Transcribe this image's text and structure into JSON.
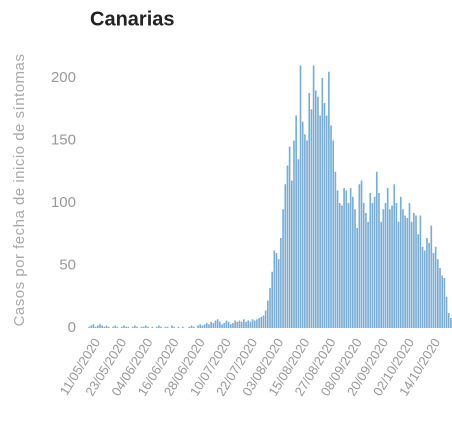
{
  "chart_data": {
    "type": "bar",
    "title": "Canarias",
    "y_label": "Casos por fecha de inicio de síntomas",
    "categories": [
      null,
      null,
      null,
      null,
      "11/05/2020",
      null,
      null,
      null,
      null,
      null,
      null,
      null,
      null,
      null,
      null,
      null,
      "23/05/2020",
      null,
      null,
      null,
      null,
      null,
      null,
      null,
      null,
      null,
      null,
      null,
      "04/06/2020",
      null,
      null,
      null,
      null,
      null,
      null,
      null,
      null,
      null,
      null,
      null,
      "16/06/2020",
      null,
      null,
      null,
      null,
      null,
      null,
      null,
      null,
      null,
      null,
      null,
      "28/06/2020",
      null,
      null,
      null,
      null,
      null,
      null,
      null,
      null,
      null,
      null,
      null,
      "10/07/2020",
      null,
      null,
      null,
      null,
      null,
      null,
      null,
      null,
      null,
      null,
      null,
      "22/07/2020",
      null,
      null,
      null,
      null,
      null,
      null,
      null,
      null,
      null,
      null,
      null,
      "03/08/2020",
      null,
      null,
      null,
      null,
      null,
      null,
      null,
      null,
      null,
      null,
      null,
      "15/08/2020",
      null,
      null,
      null,
      null,
      null,
      null,
      null,
      null,
      null,
      null,
      null,
      "27/08/2020",
      null,
      null,
      null,
      null,
      null,
      null,
      null,
      null,
      null,
      null,
      null,
      "08/09/2020",
      null,
      null,
      null,
      null,
      null,
      null,
      null,
      null,
      null,
      null,
      null,
      "20/09/2020",
      null,
      null,
      null,
      null,
      null,
      null,
      null,
      null,
      null,
      null,
      null,
      "02/10/2020",
      null,
      null,
      null,
      null,
      null,
      null,
      null,
      null,
      null,
      null,
      null,
      "14/10/2020",
      null,
      null,
      null,
      null,
      null,
      null
    ],
    "values": [
      1,
      2,
      3,
      1,
      2,
      3,
      2,
      1,
      2,
      1,
      0,
      1,
      2,
      1,
      0,
      1,
      2,
      1,
      1,
      0,
      1,
      2,
      1,
      0,
      1,
      1,
      2,
      1,
      0,
      1,
      0,
      1,
      2,
      1,
      0,
      1,
      1,
      0,
      2,
      1,
      0,
      1,
      0,
      1,
      0,
      0,
      1,
      2,
      1,
      0,
      2,
      3,
      2,
      3,
      4,
      3,
      5,
      4,
      6,
      7,
      5,
      3,
      4,
      6,
      5,
      3,
      4,
      6,
      5,
      6,
      5,
      7,
      5,
      6,
      5,
      7,
      6,
      7,
      8,
      9,
      10,
      14,
      22,
      32,
      45,
      62,
      60,
      55,
      72,
      95,
      115,
      130,
      145,
      118,
      150,
      170,
      135,
      210,
      165,
      155,
      150,
      188,
      175,
      210,
      190,
      185,
      170,
      200,
      180,
      170,
      205,
      162,
      150,
      125,
      110,
      100,
      98,
      112,
      110,
      100,
      112,
      105,
      95,
      80,
      115,
      118,
      100,
      92,
      85,
      108,
      100,
      105,
      125,
      108,
      85,
      95,
      100,
      112,
      95,
      98,
      115,
      100,
      85,
      105,
      95,
      90,
      88,
      100,
      85,
      92,
      90,
      75,
      90,
      65,
      62,
      72,
      68,
      82,
      60,
      65,
      55,
      48,
      42,
      40,
      25,
      12,
      8
    ],
    "color": "#7aaed6",
    "ylim": [
      0,
      220
    ],
    "yticks": [
      0,
      50,
      100,
      150,
      200
    ],
    "grid": false
  }
}
